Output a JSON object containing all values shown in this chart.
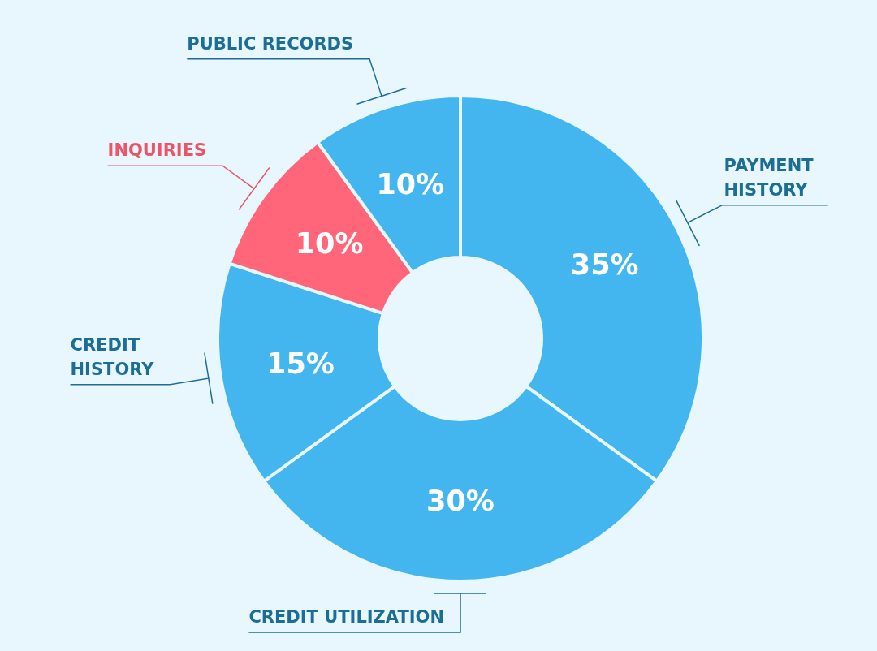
{
  "chart_data": {
    "type": "donut",
    "categories": [
      "PAYMENT HISTORY",
      "CREDIT UTILIZATION",
      "CREDIT HISTORY",
      "INQUIRIES",
      "PUBLIC RECORDS"
    ],
    "values": [
      35,
      30,
      15,
      10,
      10
    ],
    "colors": [
      "#43b6ef",
      "#43b6ef",
      "#43b6ef",
      "#ff6679",
      "#43b6ef"
    ],
    "value_labels": [
      "35%",
      "30%",
      "15%",
      "10%",
      "10%"
    ]
  }
}
